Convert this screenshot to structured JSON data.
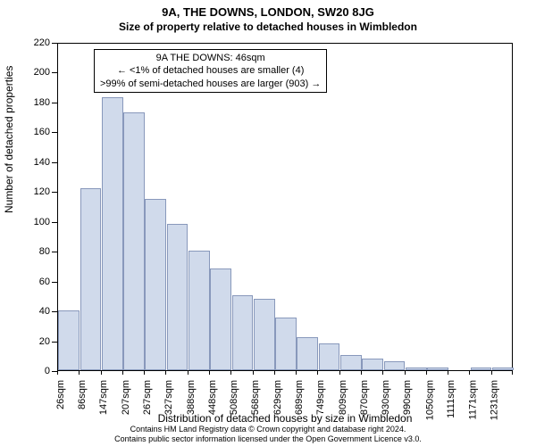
{
  "title_main": "9A, THE DOWNS, LONDON, SW20 8JG",
  "title_sub": "Size of property relative to detached houses in Wimbledon",
  "y_label": "Number of detached properties",
  "x_label": "Distribution of detached houses by size in Wimbledon",
  "chart": {
    "type": "bar",
    "bar_fill": "#d0daeb",
    "bar_stroke": "#8898bb",
    "background_color": "#ffffff",
    "ylim": [
      0,
      220
    ],
    "ytick_step": 20,
    "y_ticks": [
      0,
      20,
      40,
      60,
      80,
      100,
      120,
      140,
      160,
      180,
      200,
      220
    ],
    "x_tick_labels": [
      "26sqm",
      "86sqm",
      "147sqm",
      "207sqm",
      "267sqm",
      "327sqm",
      "388sqm",
      "448sqm",
      "508sqm",
      "568sqm",
      "629sqm",
      "689sqm",
      "749sqm",
      "809sqm",
      "870sqm",
      "930sqm",
      "990sqm",
      "1050sqm",
      "1111sqm",
      "1171sqm",
      "1231sqm"
    ],
    "bars": [
      40,
      122,
      183,
      173,
      115,
      98,
      80,
      68,
      50,
      48,
      35,
      22,
      18,
      10,
      8,
      6,
      2,
      2,
      0,
      2,
      2
    ]
  },
  "annotation": {
    "line1": "9A THE DOWNS: 46sqm",
    "line2": "← <1% of detached houses are smaller (4)",
    "line3": ">99% of semi-detached houses are larger (903) →"
  },
  "footer": {
    "line1": "Contains HM Land Registry data © Crown copyright and database right 2024.",
    "line2": "Contains public sector information licensed under the Open Government Licence v3.0."
  }
}
